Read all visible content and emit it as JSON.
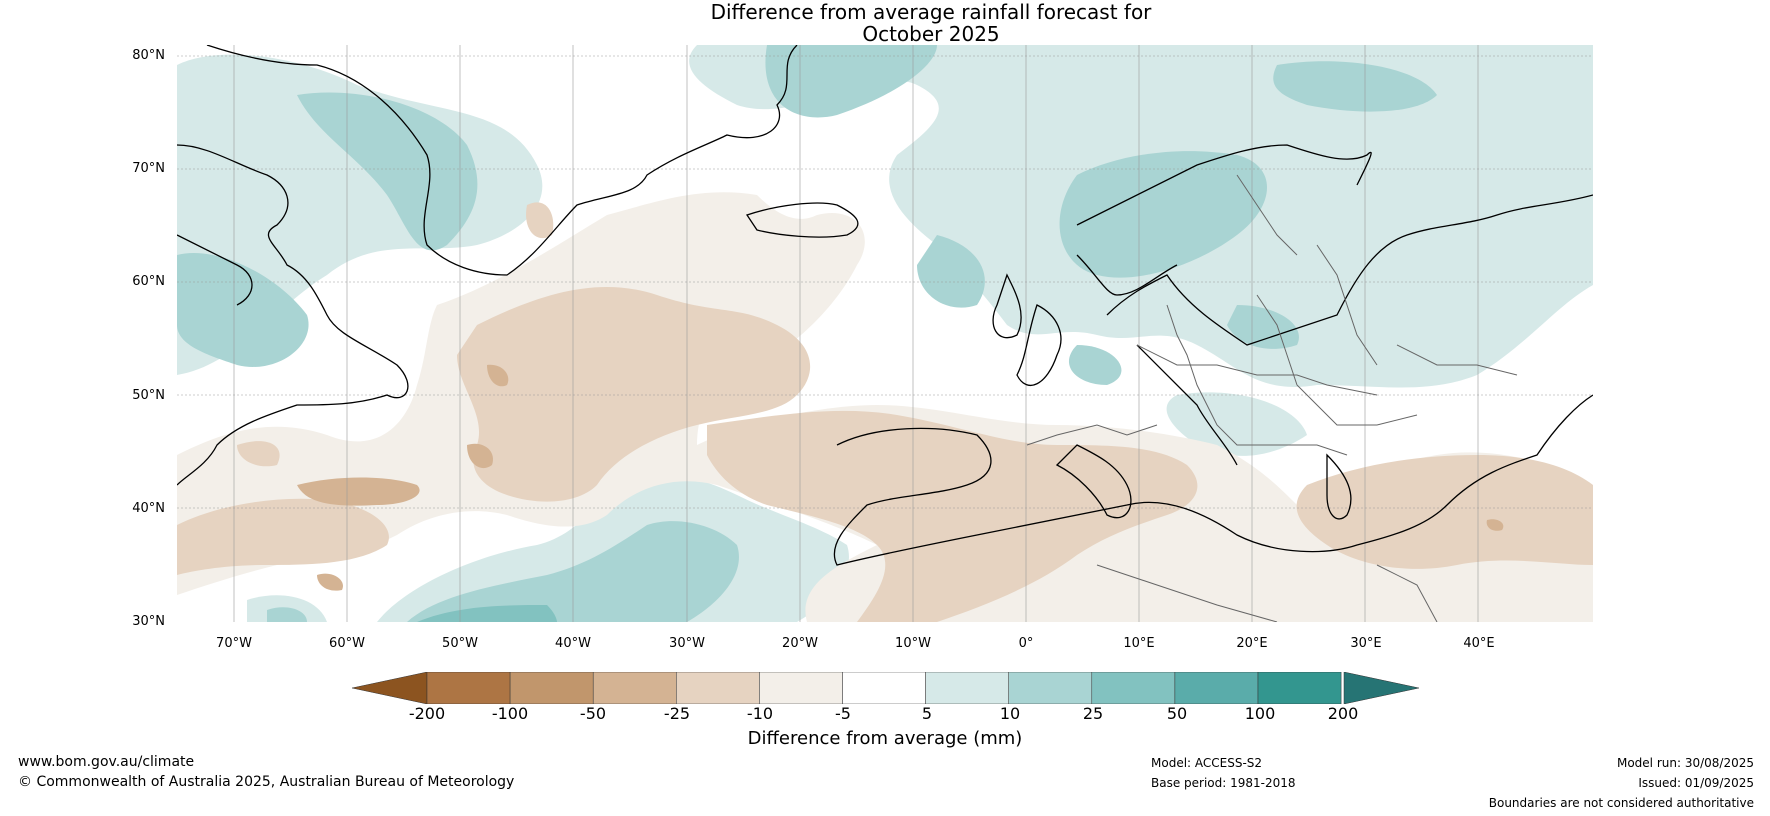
{
  "title_line1": "Difference from average rainfall forecast for",
  "title_line2": "October 2025",
  "map": {
    "lat_labels": [
      "80°N",
      "70°N",
      "60°N",
      "50°N",
      "40°N",
      "30°N"
    ],
    "lon_labels": [
      "70°W",
      "60°W",
      "50°W",
      "40°W",
      "30°W",
      "20°W",
      "10°W",
      "0°",
      "10°E",
      "20°E",
      "30°E",
      "40°E"
    ],
    "lon_range": [
      -75,
      50
    ],
    "lat_range": [
      30,
      81
    ]
  },
  "colorbar": {
    "ticks": [
      "-200",
      "-100",
      "-50",
      "-25",
      "-10",
      "-5",
      "5",
      "10",
      "25",
      "50",
      "100",
      "200"
    ],
    "colors": [
      "#8c5420",
      "#ad7544",
      "#c1966c",
      "#d4b393",
      "#e6d3c1",
      "#f3efe9",
      "#ffffff",
      "#d6e9e8",
      "#a9d4d3",
      "#82c2c0",
      "#5aacaa",
      "#33968f",
      "#267474"
    ],
    "label": "Difference from average (mm)"
  },
  "footer": {
    "website": "www.bom.gov.au/climate",
    "copyright": "© Commonwealth of Australia 2025, Australian Bureau of Meteorology",
    "model": "Model: ACCESS-S2",
    "base_period": "Base period: 1981-2018",
    "model_run": "Model run: 30/08/2025",
    "issued": "Issued: 01/09/2025",
    "disclaimer": "Boundaries are not considered authoritative"
  }
}
